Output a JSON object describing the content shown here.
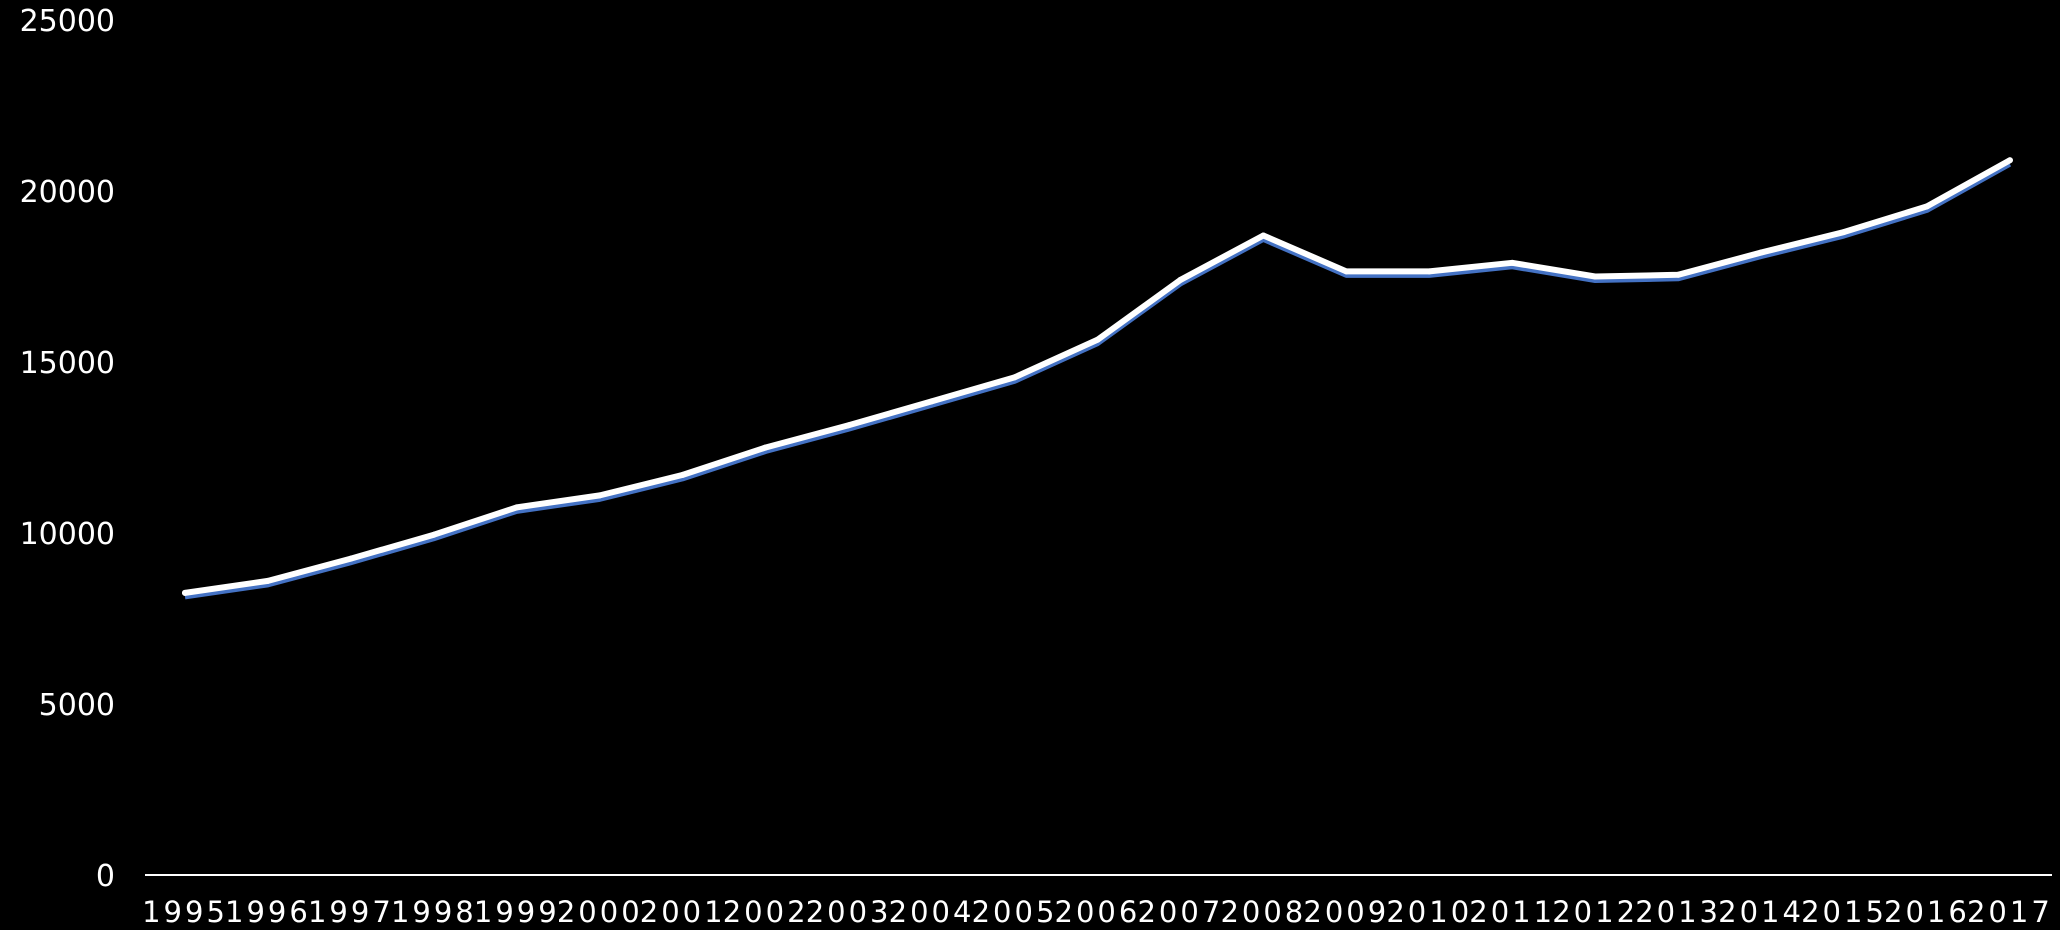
{
  "chart_data": {
    "type": "line",
    "title": "",
    "xlabel": "",
    "ylabel": "",
    "x": [
      "1995",
      "1996",
      "1997",
      "1998",
      "1999",
      "2000",
      "2001",
      "2002",
      "2003",
      "2004",
      "2005",
      "2006",
      "2007",
      "2008",
      "2009",
      "2010",
      "2011",
      "2012",
      "2013",
      "2014",
      "2015",
      "2016",
      "2017"
    ],
    "series": [
      {
        "values": [
          8250,
          8600,
          9250,
          9950,
          10750,
          11100,
          11700,
          12500,
          13150,
          13850,
          14550,
          15650,
          17400,
          18700,
          17650,
          17650,
          17900,
          17500,
          17550,
          18200,
          18800,
          19550,
          20900
        ]
      }
    ],
    "ylim": [
      0,
      25000
    ],
    "y_ticks": [
      "0",
      "5000",
      "10000",
      "15000",
      "20000",
      "25000"
    ],
    "grid": false,
    "drop_lines": true,
    "colors": {
      "background": "#000000",
      "line": "#ffffff",
      "line_shadow": "#4472c4",
      "drop_line": "#ffffff",
      "axis": "#ffffff",
      "text": "#ffffff"
    }
  }
}
